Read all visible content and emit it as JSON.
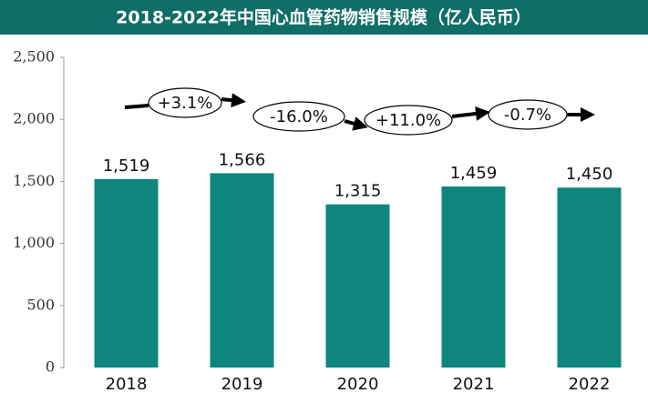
{
  "chart_data": {
    "type": "bar",
    "title": "2018-2022年中国心血管药物销售规模（亿人民币）",
    "categories": [
      "2018",
      "2019",
      "2020",
      "2021",
      "2022"
    ],
    "values": [
      1519,
      1566,
      1315,
      1459,
      1450
    ],
    "value_labels": [
      "1,519",
      "1,566",
      "1,315",
      "1,459",
      "1,450"
    ],
    "color": "#0e867d",
    "ylim": [
      0,
      2500
    ],
    "yticks": [
      0,
      500,
      {
        "value": 1000,
        "label": "1,000"
      },
      {
        "value": 1500,
        "label": "1,500"
      },
      {
        "value": 2000,
        "label": "2,000"
      },
      {
        "value": 2500,
        "label": "2,500"
      }
    ],
    "annotations": [
      "+3.1%",
      "-16.0%",
      "+11.0%",
      "-0.7%"
    ]
  }
}
